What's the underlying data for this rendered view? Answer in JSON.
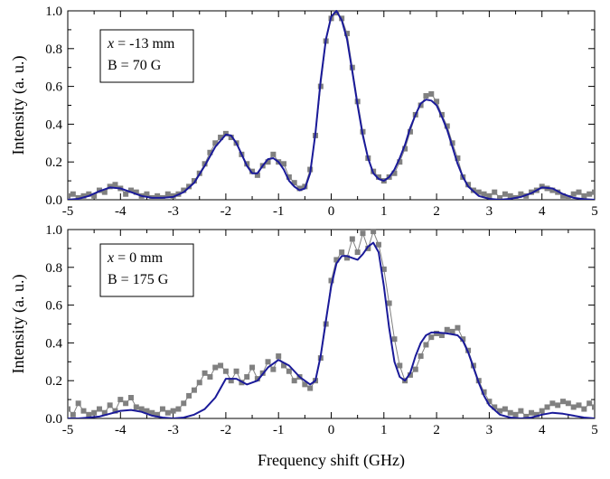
{
  "chart_data": [
    {
      "type": "line",
      "panel": "top",
      "xlabel": "",
      "ylabel": "Intensity (a. u.)",
      "xlim": [
        -5,
        5
      ],
      "ylim": [
        0,
        1.0
      ],
      "xticks": [
        -5,
        -4,
        -3,
        -2,
        -1,
        0,
        1,
        2,
        3,
        4,
        5
      ],
      "yticks": [
        "0.0",
        "0.2",
        "0.4",
        "0.6",
        "0.8",
        "1.0"
      ],
      "ytick_values": [
        0,
        0.2,
        0.4,
        0.6,
        0.8,
        1.0
      ],
      "annotation": {
        "var": "x",
        "line1_rest": " = -13 mm",
        "line2": "B = 70 G"
      },
      "colors": {
        "fit": "#1a1a99",
        "data": "#808080"
      },
      "series": [
        {
          "kind": "fit",
          "x": [
            -5,
            -4.8,
            -4.6,
            -4.4,
            -4.2,
            -4.0,
            -3.8,
            -3.6,
            -3.4,
            -3.2,
            -3.0,
            -2.8,
            -2.6,
            -2.4,
            -2.2,
            -2.0,
            -1.9,
            -1.8,
            -1.7,
            -1.6,
            -1.5,
            -1.4,
            -1.3,
            -1.2,
            -1.1,
            -1.0,
            -0.9,
            -0.8,
            -0.7,
            -0.6,
            -0.5,
            -0.4,
            -0.3,
            -0.2,
            -0.1,
            0.0,
            0.1,
            0.2,
            0.3,
            0.4,
            0.5,
            0.6,
            0.7,
            0.8,
            0.9,
            1.0,
            1.1,
            1.2,
            1.3,
            1.4,
            1.5,
            1.6,
            1.7,
            1.8,
            1.9,
            2.0,
            2.1,
            2.2,
            2.3,
            2.4,
            2.5,
            2.6,
            2.8,
            3.0,
            3.2,
            3.4,
            3.6,
            3.8,
            4.0,
            4.2,
            4.4,
            4.6,
            4.8,
            5.0
          ],
          "y": [
            0.0,
            0.005,
            0.02,
            0.045,
            0.065,
            0.06,
            0.04,
            0.02,
            0.01,
            0.01,
            0.015,
            0.04,
            0.09,
            0.18,
            0.28,
            0.345,
            0.34,
            0.3,
            0.24,
            0.18,
            0.14,
            0.14,
            0.18,
            0.215,
            0.22,
            0.2,
            0.16,
            0.1,
            0.07,
            0.05,
            0.06,
            0.14,
            0.35,
            0.63,
            0.85,
            0.97,
            1.0,
            0.95,
            0.85,
            0.68,
            0.5,
            0.34,
            0.22,
            0.14,
            0.11,
            0.1,
            0.12,
            0.16,
            0.22,
            0.29,
            0.38,
            0.45,
            0.51,
            0.53,
            0.525,
            0.5,
            0.44,
            0.37,
            0.28,
            0.19,
            0.12,
            0.07,
            0.02,
            0.005,
            0.0,
            0.005,
            0.015,
            0.035,
            0.065,
            0.06,
            0.03,
            0.01,
            0.003,
            0.0
          ]
        },
        {
          "kind": "data",
          "x": [
            -5,
            -4.9,
            -4.8,
            -4.7,
            -4.6,
            -4.5,
            -4.4,
            -4.3,
            -4.2,
            -4.1,
            -4.0,
            -3.9,
            -3.8,
            -3.7,
            -3.6,
            -3.5,
            -3.4,
            -3.3,
            -3.2,
            -3.1,
            -3.0,
            -2.9,
            -2.8,
            -2.7,
            -2.6,
            -2.5,
            -2.4,
            -2.3,
            -2.2,
            -2.1,
            -2.0,
            -1.9,
            -1.8,
            -1.7,
            -1.6,
            -1.5,
            -1.4,
            -1.3,
            -1.2,
            -1.1,
            -1.0,
            -0.9,
            -0.8,
            -0.7,
            -0.6,
            -0.5,
            -0.4,
            -0.3,
            -0.2,
            -0.1,
            0.0,
            0.1,
            0.2,
            0.3,
            0.4,
            0.5,
            0.6,
            0.7,
            0.8,
            0.9,
            1.0,
            1.1,
            1.2,
            1.3,
            1.4,
            1.5,
            1.6,
            1.7,
            1.8,
            1.9,
            2.0,
            2.1,
            2.2,
            2.3,
            2.4,
            2.5,
            2.6,
            2.7,
            2.8,
            2.9,
            3.0,
            3.1,
            3.2,
            3.3,
            3.4,
            3.5,
            3.6,
            3.7,
            3.8,
            3.9,
            4.0,
            4.1,
            4.2,
            4.3,
            4.4,
            4.5,
            4.6,
            4.7,
            4.8,
            4.9,
            5.0
          ],
          "y": [
            0.02,
            0.03,
            0.01,
            0.02,
            0.03,
            0.02,
            0.05,
            0.04,
            0.07,
            0.08,
            0.06,
            0.03,
            0.05,
            0.04,
            0.02,
            0.03,
            0.01,
            0.02,
            0.01,
            0.03,
            0.02,
            0.03,
            0.05,
            0.07,
            0.1,
            0.14,
            0.19,
            0.25,
            0.3,
            0.33,
            0.35,
            0.33,
            0.3,
            0.24,
            0.19,
            0.15,
            0.13,
            0.18,
            0.2,
            0.24,
            0.2,
            0.19,
            0.12,
            0.09,
            0.06,
            0.07,
            0.16,
            0.34,
            0.6,
            0.84,
            0.96,
            0.99,
            0.96,
            0.88,
            0.7,
            0.52,
            0.36,
            0.22,
            0.15,
            0.12,
            0.1,
            0.12,
            0.14,
            0.2,
            0.27,
            0.36,
            0.45,
            0.5,
            0.55,
            0.56,
            0.52,
            0.45,
            0.39,
            0.3,
            0.22,
            0.12,
            0.08,
            0.05,
            0.04,
            0.03,
            0.02,
            0.04,
            0.01,
            0.03,
            0.02,
            0.01,
            0.03,
            0.02,
            0.04,
            0.05,
            0.07,
            0.06,
            0.05,
            0.04,
            0.02,
            0.01,
            0.03,
            0.04,
            0.02,
            0.03,
            0.04
          ]
        }
      ]
    },
    {
      "type": "line",
      "panel": "bottom",
      "xlabel": "Frequency shift (GHz)",
      "ylabel": "Intensity (a. u.)",
      "xlim": [
        -5,
        5
      ],
      "ylim": [
        0,
        1.0
      ],
      "xticks": [
        -5,
        -4,
        -3,
        -2,
        -1,
        0,
        1,
        2,
        3,
        4,
        5
      ],
      "yticks": [
        "0.0",
        "0.2",
        "0.4",
        "0.6",
        "0.8",
        "1.0"
      ],
      "ytick_values": [
        0,
        0.2,
        0.4,
        0.6,
        0.8,
        1.0
      ],
      "annotation": {
        "var": "x",
        "line1_rest": " = 0 mm",
        "line2": "B = 175 G"
      },
      "colors": {
        "fit": "#1a1a99",
        "data": "#808080"
      },
      "series": [
        {
          "kind": "fit",
          "x": [
            -5,
            -4.8,
            -4.6,
            -4.4,
            -4.2,
            -4.0,
            -3.8,
            -3.6,
            -3.4,
            -3.2,
            -3.0,
            -2.8,
            -2.6,
            -2.4,
            -2.2,
            -2.0,
            -1.8,
            -1.6,
            -1.4,
            -1.2,
            -1.0,
            -0.8,
            -0.6,
            -0.4,
            -0.3,
            -0.2,
            -0.1,
            0.0,
            0.1,
            0.2,
            0.3,
            0.4,
            0.5,
            0.6,
            0.7,
            0.8,
            0.9,
            1.0,
            1.1,
            1.2,
            1.3,
            1.4,
            1.5,
            1.6,
            1.7,
            1.8,
            1.9,
            2.0,
            2.2,
            2.4,
            2.5,
            2.6,
            2.7,
            2.8,
            2.9,
            3.0,
            3.2,
            3.4,
            3.6,
            3.8,
            4.0,
            4.2,
            4.4,
            4.6,
            4.8,
            5.0
          ],
          "y": [
            0.0,
            0.0,
            0.005,
            0.01,
            0.025,
            0.04,
            0.045,
            0.035,
            0.015,
            0.005,
            0.0,
            0.005,
            0.02,
            0.05,
            0.11,
            0.21,
            0.21,
            0.18,
            0.2,
            0.27,
            0.31,
            0.28,
            0.22,
            0.18,
            0.2,
            0.33,
            0.52,
            0.7,
            0.82,
            0.86,
            0.86,
            0.85,
            0.84,
            0.87,
            0.91,
            0.93,
            0.88,
            0.7,
            0.48,
            0.3,
            0.22,
            0.2,
            0.24,
            0.33,
            0.4,
            0.44,
            0.455,
            0.455,
            0.45,
            0.44,
            0.41,
            0.35,
            0.27,
            0.19,
            0.12,
            0.07,
            0.02,
            0.005,
            0.0,
            0.005,
            0.02,
            0.03,
            0.025,
            0.015,
            0.005,
            0.0
          ]
        },
        {
          "kind": "data",
          "x": [
            -5,
            -4.9,
            -4.8,
            -4.7,
            -4.6,
            -4.5,
            -4.4,
            -4.3,
            -4.2,
            -4.1,
            -4.0,
            -3.9,
            -3.8,
            -3.7,
            -3.6,
            -3.5,
            -3.4,
            -3.3,
            -3.2,
            -3.1,
            -3.0,
            -2.9,
            -2.8,
            -2.7,
            -2.6,
            -2.5,
            -2.4,
            -2.3,
            -2.2,
            -2.1,
            -2.0,
            -1.9,
            -1.8,
            -1.7,
            -1.6,
            -1.5,
            -1.4,
            -1.3,
            -1.2,
            -1.1,
            -1.0,
            -0.9,
            -0.8,
            -0.7,
            -0.6,
            -0.5,
            -0.4,
            -0.3,
            -0.2,
            -0.1,
            0.0,
            0.1,
            0.2,
            0.3,
            0.4,
            0.5,
            0.6,
            0.7,
            0.8,
            0.9,
            1.0,
            1.1,
            1.2,
            1.3,
            1.4,
            1.5,
            1.6,
            1.7,
            1.8,
            1.9,
            2.0,
            2.1,
            2.2,
            2.3,
            2.4,
            2.5,
            2.6,
            2.7,
            2.8,
            2.9,
            3.0,
            3.1,
            3.2,
            3.3,
            3.4,
            3.5,
            3.6,
            3.7,
            3.8,
            3.9,
            4.0,
            4.1,
            4.2,
            4.3,
            4.4,
            4.5,
            4.6,
            4.7,
            4.8,
            4.9,
            5.0
          ],
          "y": [
            0.05,
            0.02,
            0.08,
            0.04,
            0.02,
            0.03,
            0.05,
            0.03,
            0.07,
            0.04,
            0.1,
            0.08,
            0.11,
            0.06,
            0.05,
            0.04,
            0.03,
            0.02,
            0.05,
            0.03,
            0.04,
            0.05,
            0.08,
            0.12,
            0.15,
            0.19,
            0.24,
            0.22,
            0.27,
            0.28,
            0.25,
            0.2,
            0.25,
            0.19,
            0.22,
            0.27,
            0.21,
            0.24,
            0.3,
            0.26,
            0.33,
            0.28,
            0.25,
            0.2,
            0.22,
            0.18,
            0.16,
            0.2,
            0.32,
            0.5,
            0.73,
            0.84,
            0.88,
            0.85,
            0.95,
            0.88,
            0.98,
            0.9,
            0.99,
            0.92,
            0.79,
            0.61,
            0.42,
            0.28,
            0.2,
            0.23,
            0.26,
            0.33,
            0.39,
            0.43,
            0.45,
            0.44,
            0.47,
            0.46,
            0.48,
            0.42,
            0.36,
            0.28,
            0.2,
            0.14,
            0.09,
            0.06,
            0.04,
            0.05,
            0.03,
            0.02,
            0.04,
            0.01,
            0.03,
            0.02,
            0.04,
            0.06,
            0.08,
            0.07,
            0.09,
            0.08,
            0.06,
            0.07,
            0.05,
            0.08,
            0.06
          ]
        }
      ]
    }
  ]
}
